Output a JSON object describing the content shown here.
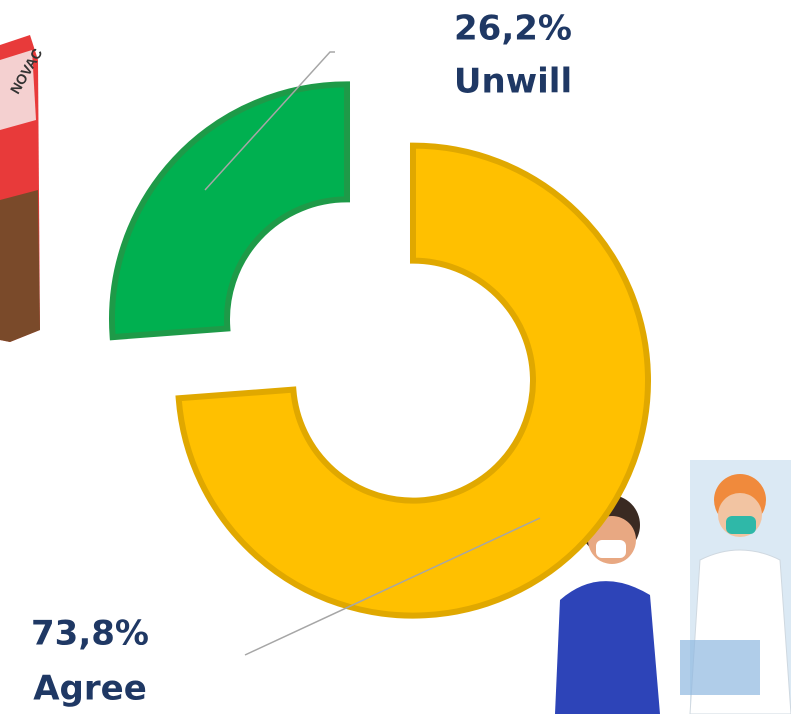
{
  "chart_data": {
    "type": "donut",
    "categories": [
      "Agree",
      "Unwill"
    ],
    "values": [
      73.8,
      26.2
    ],
    "value_labels": [
      "73,8%",
      "26,2%"
    ],
    "colors": [
      "#FFC000",
      "#00B050"
    ]
  }
}
